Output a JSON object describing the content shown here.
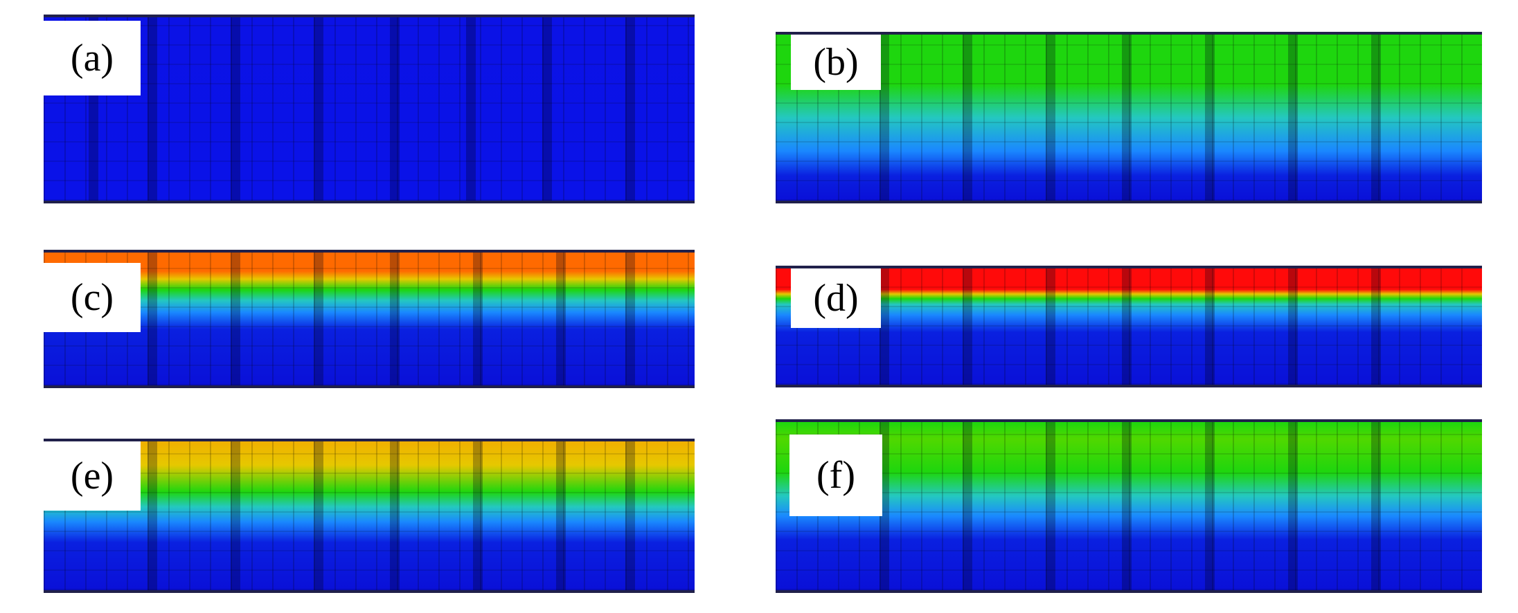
{
  "panels": [
    {
      "label": "(a)"
    },
    {
      "label": "(b)"
    },
    {
      "label": "(c)"
    },
    {
      "label": "(d)"
    },
    {
      "label": "(e)"
    },
    {
      "label": "(f)"
    }
  ],
  "colors": {
    "blue": "#0a10e8",
    "lightblue": "#1a88ff",
    "cyan": "#24d8d0",
    "green": "#1ed60e",
    "yellow": "#e6c800",
    "orange": "#ff6a00",
    "red": "#ff0a0a"
  }
}
